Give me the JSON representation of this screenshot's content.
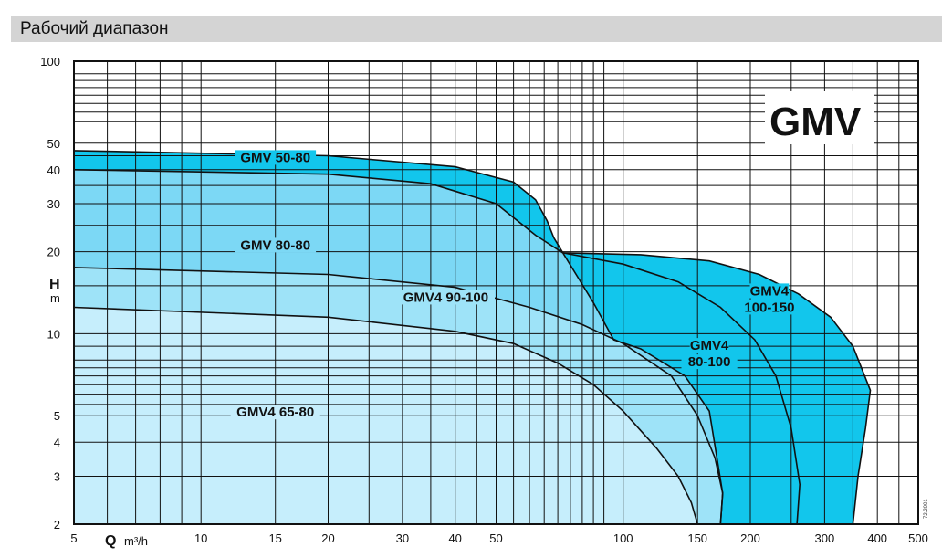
{
  "header": {
    "title": "Рабочий диапазон"
  },
  "code_label": "72.2001",
  "chart_data": {
    "type": "area",
    "title": "GMV",
    "xlabel_symbol": "Q",
    "xlabel_unit": "m³/h",
    "ylabel_symbol": "H",
    "ylabel_unit": "m",
    "xscale": "log",
    "yscale": "log",
    "xlim": [
      5,
      500
    ],
    "ylim": [
      2,
      100
    ],
    "grid": true,
    "x_ticks": [
      5,
      10,
      15,
      20,
      30,
      40,
      50,
      100,
      150,
      200,
      300,
      400,
      500
    ],
    "x_tick_labels": [
      "5",
      "10",
      "15",
      "20",
      "30",
      "40",
      "50",
      "100",
      "150",
      "200",
      "300",
      "400",
      "500"
    ],
    "y_ticks": [
      2,
      3,
      4,
      5,
      10,
      20,
      30,
      40,
      50,
      100
    ],
    "y_tick_labels": [
      "2",
      "3",
      "4",
      "5",
      "10",
      "20",
      "30",
      "40",
      "50",
      "100"
    ],
    "series": [
      {
        "name": "GMV4 100-150",
        "color": "#12c6ec",
        "label_lines": [
          "GMV4",
          "100-150"
        ],
        "label_at": [
          222,
          13
        ],
        "points": [
          [
            72,
            19.8
          ],
          [
            110,
            19.5
          ],
          [
            160,
            18.5
          ],
          [
            210,
            16.5
          ],
          [
            260,
            14
          ],
          [
            310,
            11.5
          ],
          [
            350,
            9
          ],
          [
            385,
            6.2
          ],
          [
            375,
            4.5
          ],
          [
            360,
            3
          ],
          [
            350,
            2
          ]
        ]
      },
      {
        "name": "GMV 50-80",
        "color": "#12c6ec",
        "label_lines": [
          "GMV 50-80"
        ],
        "label_at": [
          15,
          43
        ],
        "points": [
          [
            5,
            47
          ],
          [
            20,
            45
          ],
          [
            40,
            41
          ],
          [
            55,
            36
          ],
          [
            62,
            31
          ],
          [
            66,
            26
          ],
          [
            68.5,
            22.5
          ],
          [
            72,
            19.8
          ]
        ]
      },
      {
        "name": "GMV4 80-100",
        "color": "#12c6ec",
        "label_lines": [
          "GMV4",
          "80-100"
        ],
        "label_at": [
          160,
          8.2
        ],
        "points": [
          [
            72,
            19.8
          ],
          [
            100,
            18
          ],
          [
            135,
            15.5
          ],
          [
            170,
            12.5
          ],
          [
            205,
            9.5
          ],
          [
            230,
            7
          ],
          [
            250,
            4.5
          ],
          [
            262,
            2.8
          ],
          [
            258,
            2
          ]
        ]
      },
      {
        "name": "GMV 80-80",
        "color": "#7cd8f5",
        "label_lines": [
          "GMV 80-80"
        ],
        "label_at": [
          15,
          20.5
        ],
        "points": [
          [
            5,
            40
          ],
          [
            20,
            38.5
          ],
          [
            35,
            35.5
          ],
          [
            50,
            30
          ],
          [
            62,
            23
          ],
          [
            72,
            19.8
          ],
          [
            85,
            13
          ],
          [
            95,
            9.5
          ],
          [
            110,
            8.8
          ],
          [
            140,
            7
          ],
          [
            160,
            5.2
          ],
          [
            172,
            2.6
          ],
          [
            170,
            2
          ]
        ]
      },
      {
        "name": "GMV4 90-100",
        "color": "#9ee3f8",
        "label_lines": [
          "GMV4 90-100"
        ],
        "label_at": [
          38,
          13.2
        ],
        "points": [
          [
            5,
            17.5
          ],
          [
            20,
            16.5
          ],
          [
            40,
            14.8
          ],
          [
            60,
            12.5
          ],
          [
            80,
            10.8
          ],
          [
            100,
            9.2
          ],
          [
            130,
            7
          ],
          [
            150,
            5
          ],
          [
            165,
            3.5
          ],
          [
            172,
            2.6
          ],
          [
            170,
            2
          ]
        ]
      },
      {
        "name": "GMV4 65-80",
        "color": "#c6eefc",
        "label_lines": [
          "GMV4 65-80"
        ],
        "label_at": [
          15,
          5
        ],
        "points": [
          [
            5,
            12.5
          ],
          [
            20,
            11.5
          ],
          [
            40,
            10.2
          ],
          [
            55,
            9.2
          ],
          [
            70,
            7.8
          ],
          [
            85,
            6.5
          ],
          [
            100,
            5.2
          ],
          [
            120,
            3.8
          ],
          [
            135,
            3
          ],
          [
            145,
            2.4
          ],
          [
            150,
            2
          ]
        ]
      }
    ]
  }
}
